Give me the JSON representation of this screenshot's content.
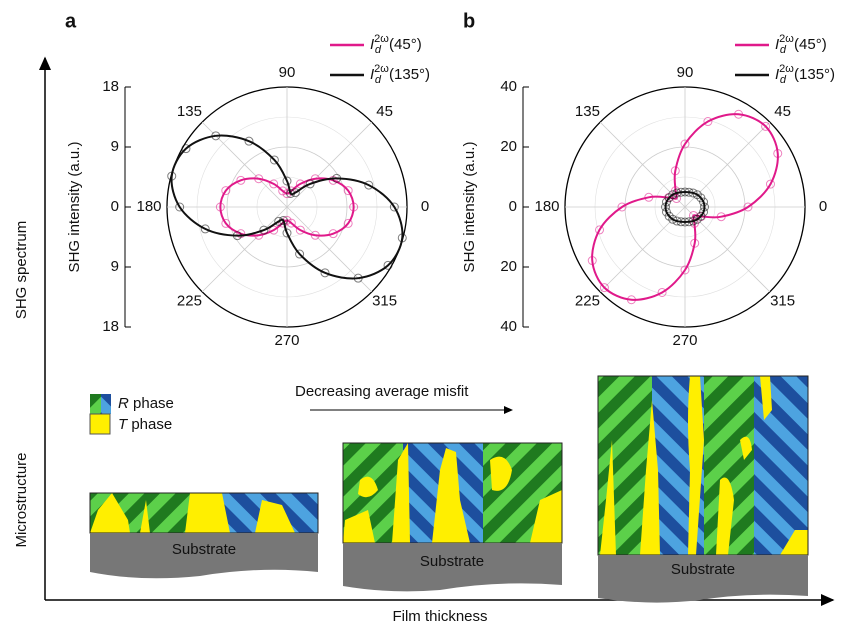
{
  "figure": {
    "y_axis_top": "SHG spectrum",
    "y_axis_bottom": "Microstructure",
    "x_axis": "Film thickness",
    "phases": [
      {
        "symbol": "R",
        "text": "phase"
      },
      {
        "symbol": "T",
        "text": "phase"
      }
    ],
    "arrow_label": "Decreasing average misfit",
    "substrate": [
      "Substrate",
      "Substrate",
      "Substrate"
    ]
  },
  "chart_data": [
    {
      "type": "polar",
      "panel": "a",
      "y_label": "SHG intensity (a.u.)",
      "ylim": [
        -18,
        18
      ],
      "yticks": [
        {
          "value": -18,
          "label": "18"
        },
        {
          "value": -9,
          "label": "9"
        },
        0,
        9,
        18
      ],
      "angle_ticks": [
        0,
        45,
        90,
        135,
        180,
        225,
        270,
        315
      ],
      "theta": [
        0,
        15,
        30,
        45,
        60,
        75,
        90,
        105,
        120,
        135,
        150,
        165,
        180,
        195,
        210,
        225,
        240,
        255,
        270,
        285,
        300,
        315,
        330,
        345
      ],
      "series": [
        {
          "name_base": "I",
          "name_sub": "d",
          "name_sup": "2ω",
          "name": "(45°)",
          "color": "#e0198a",
          "values": [
            10,
            9.5,
            8,
            6,
            4,
            2.5,
            2,
            2.5,
            4,
            6,
            8,
            9.5,
            10,
            9.5,
            8,
            6,
            4,
            2.5,
            2,
            2.5,
            4,
            6,
            8,
            9.5
          ]
        },
        {
          "name_base": "I",
          "name_sub": "d",
          "name_sup": "2ω",
          "name": "(135°)",
          "color": "#111111",
          "values": [
            16.1,
            12.7,
            8.6,
            4.9,
            2.5,
            2.1,
            3.9,
            7.3,
            11.4,
            15.1,
            17.5,
            17.9,
            16.1,
            12.7,
            8.6,
            4.9,
            2.5,
            2.1,
            3.9,
            7.3,
            11.4,
            15.1,
            17.5,
            17.9
          ]
        }
      ]
    },
    {
      "type": "polar",
      "panel": "b",
      "y_label": "SHG intensity (a.u.)",
      "ylim": [
        -40,
        40
      ],
      "yticks": [
        {
          "value": -40,
          "label": "40"
        },
        {
          "value": -20,
          "label": "20"
        },
        0,
        20,
        40
      ],
      "angle_ticks": [
        0,
        45,
        90,
        135,
        180,
        225,
        270,
        315
      ],
      "theta": [
        0,
        15,
        30,
        45,
        60,
        75,
        90,
        105,
        120,
        135,
        150,
        165,
        180,
        195,
        210,
        225,
        240,
        255,
        270,
        285,
        300,
        315,
        330,
        345
      ],
      "series": [
        {
          "name_base": "I",
          "name_sub": "d",
          "name_sup": "2ω",
          "name": "(45°)",
          "color": "#e0198a",
          "values": [
            21,
            29.5,
            35.7,
            38,
            35.7,
            29.5,
            21,
            12.5,
            6.3,
            4,
            6.3,
            12.5,
            21,
            29.5,
            35.7,
            38,
            35.7,
            29.5,
            21,
            12.5,
            6.3,
            4,
            6.3,
            12.5
          ]
        },
        {
          "name_base": "I",
          "name_sub": "d",
          "name_sup": "2ω",
          "name": "(135°)",
          "color": "#111111",
          "values": [
            6.5,
            6.4,
            6.1,
            5.8,
            5.4,
            5.1,
            5,
            5.1,
            5.4,
            5.8,
            6.1,
            6.4,
            6.5,
            6.4,
            6.1,
            5.8,
            5.4,
            5.1,
            5,
            5.1,
            5.4,
            5.8,
            6.1,
            6.4
          ]
        }
      ]
    }
  ]
}
